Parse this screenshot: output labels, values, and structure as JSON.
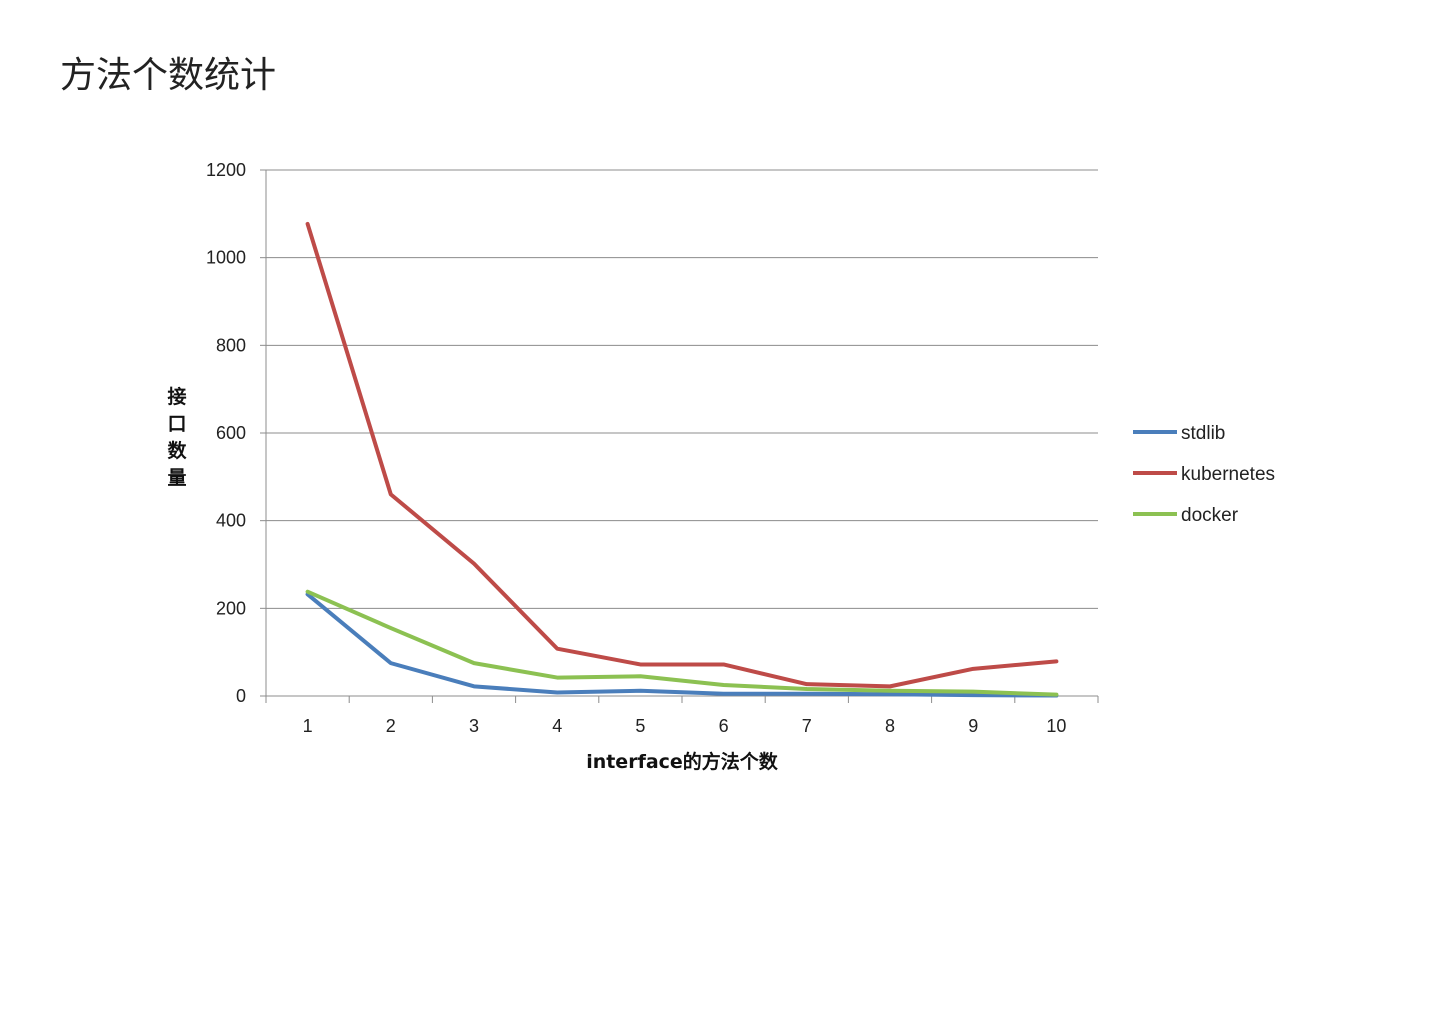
{
  "page": {
    "title": "方法个数统计"
  },
  "chart_data": {
    "type": "line",
    "title": "",
    "xlabel": "interface的方法个数",
    "ylabel": "接口数量",
    "categories": [
      "1",
      "2",
      "3",
      "4",
      "5",
      "6",
      "7",
      "8",
      "9",
      "10"
    ],
    "ylim": [
      0,
      1200
    ],
    "yticks": [
      0,
      200,
      400,
      600,
      800,
      1000,
      1200
    ],
    "grid": true,
    "legend": "right",
    "series": [
      {
        "name": "stdlib",
        "color": "#4a7ebb",
        "values": [
          232,
          75,
          22,
          8,
          12,
          5,
          5,
          4,
          2,
          1
        ]
      },
      {
        "name": "kubernetes",
        "color": "#be4b48",
        "values": [
          1077,
          460,
          302,
          108,
          72,
          72,
          27,
          22,
          62,
          79
        ]
      },
      {
        "name": "docker",
        "color": "#8cc152",
        "values": [
          238,
          155,
          75,
          42,
          45,
          25,
          16,
          12,
          10,
          3
        ]
      }
    ]
  }
}
